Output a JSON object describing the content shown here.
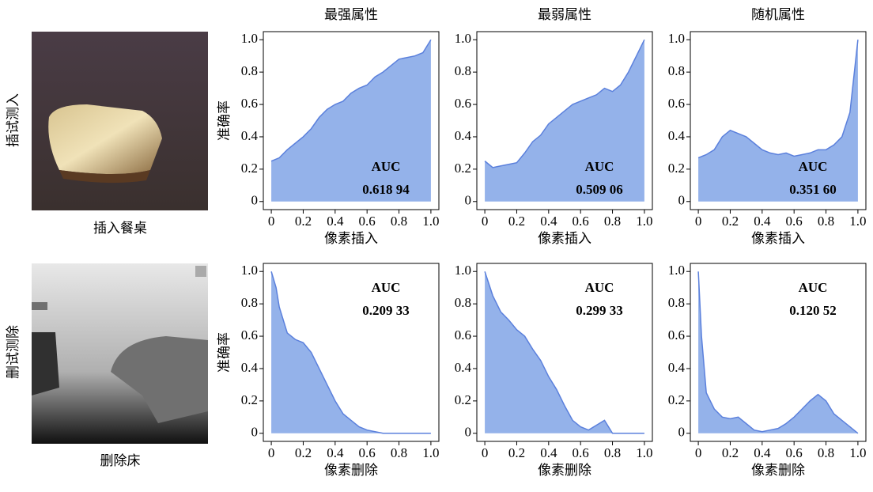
{
  "column_titles": [
    "最强属性",
    "最弱属性",
    "随机属性"
  ],
  "row_labels": [
    "插试测入",
    "删试测除"
  ],
  "image_captions": [
    "插入餐桌",
    "删除床"
  ],
  "chart_data": [
    {
      "type": "area",
      "xlabel": "像素插入",
      "ylabel": "准确率",
      "color": "#94b2ea",
      "line_color": "#5b80dc",
      "x": [
        0,
        0.05,
        0.1,
        0.15,
        0.2,
        0.25,
        0.3,
        0.35,
        0.4,
        0.45,
        0.5,
        0.55,
        0.6,
        0.65,
        0.7,
        0.75,
        0.8,
        0.85,
        0.9,
        0.95,
        1.0
      ],
      "values": [
        0.25,
        0.27,
        0.32,
        0.36,
        0.4,
        0.45,
        0.52,
        0.57,
        0.6,
        0.62,
        0.67,
        0.7,
        0.72,
        0.77,
        0.8,
        0.84,
        0.88,
        0.89,
        0.9,
        0.92,
        1.0
      ],
      "annotation": {
        "title": "AUC",
        "text": "0.618 94",
        "color": "#b22222"
      },
      "xlim": [
        -0.05,
        1.05
      ],
      "ylim": [
        -0.05,
        1.05
      ],
      "xticks": [
        0,
        0.2,
        0.4,
        0.6,
        0.8,
        {
          "value": 1,
          "label": "1.0"
        }
      ],
      "yticks": [
        0,
        0.2,
        0.4,
        0.6,
        0.8,
        {
          "value": 1,
          "label": "1.0"
        }
      ]
    },
    {
      "type": "area",
      "xlabel": "像素插入",
      "color": "#94b2ea",
      "line_color": "#5b80dc",
      "x": [
        0,
        0.05,
        0.1,
        0.15,
        0.2,
        0.25,
        0.3,
        0.35,
        0.4,
        0.45,
        0.5,
        0.55,
        0.6,
        0.65,
        0.7,
        0.75,
        0.8,
        0.85,
        0.9,
        0.95,
        1.0
      ],
      "values": [
        0.25,
        0.21,
        0.22,
        0.23,
        0.24,
        0.3,
        0.37,
        0.41,
        0.48,
        0.52,
        0.56,
        0.6,
        0.62,
        0.64,
        0.66,
        0.7,
        0.68,
        0.72,
        0.8,
        0.9,
        1.0
      ],
      "annotation": {
        "title": "AUC",
        "text": "0.509 06",
        "color": "#000000"
      },
      "xlim": [
        -0.05,
        1.05
      ],
      "ylim": [
        -0.05,
        1.05
      ],
      "xticks": [
        0,
        0.2,
        0.4,
        0.6,
        0.8,
        {
          "value": 1,
          "label": "1.0"
        }
      ],
      "yticks": [
        0,
        0.2,
        0.4,
        0.6,
        0.8,
        {
          "value": 1,
          "label": "1.0"
        }
      ]
    },
    {
      "type": "area",
      "xlabel": "像素插入",
      "color": "#94b2ea",
      "line_color": "#5b80dc",
      "x": [
        0,
        0.05,
        0.1,
        0.15,
        0.2,
        0.25,
        0.3,
        0.35,
        0.4,
        0.45,
        0.5,
        0.55,
        0.6,
        0.65,
        0.7,
        0.75,
        0.8,
        0.85,
        0.9,
        0.95,
        1.0
      ],
      "values": [
        0.27,
        0.29,
        0.32,
        0.4,
        0.44,
        0.42,
        0.4,
        0.36,
        0.32,
        0.3,
        0.29,
        0.3,
        0.28,
        0.29,
        0.3,
        0.32,
        0.32,
        0.35,
        0.4,
        0.55,
        1.0
      ],
      "annotation": {
        "title": "AUC",
        "text": "0.351 60",
        "color": "#000000"
      },
      "xlim": [
        -0.05,
        1.05
      ],
      "ylim": [
        -0.05,
        1.05
      ],
      "xticks": [
        0,
        0.2,
        0.4,
        0.6,
        0.8,
        {
          "value": 1,
          "label": "1.0"
        }
      ],
      "yticks": [
        0,
        0.2,
        0.4,
        0.6,
        0.8,
        {
          "value": 1,
          "label": "1.0"
        }
      ]
    },
    {
      "type": "area",
      "xlabel": "像素删除",
      "ylabel": "准确率",
      "color": "#94b2ea",
      "line_color": "#5b80dc",
      "x": [
        0,
        0.03,
        0.05,
        0.1,
        0.15,
        0.2,
        0.25,
        0.3,
        0.35,
        0.4,
        0.45,
        0.5,
        0.55,
        0.6,
        0.65,
        0.7,
        0.75,
        0.8,
        0.85,
        0.9,
        0.95,
        1.0
      ],
      "values": [
        1.0,
        0.9,
        0.78,
        0.62,
        0.58,
        0.56,
        0.5,
        0.4,
        0.3,
        0.2,
        0.12,
        0.08,
        0.04,
        0.02,
        0.01,
        0,
        0,
        0,
        0,
        0,
        0,
        0
      ],
      "annotation": {
        "title": "AUC",
        "text": "0.209 33",
        "color": "#b22222"
      },
      "xlim": [
        -0.05,
        1.05
      ],
      "ylim": [
        -0.05,
        1.05
      ],
      "xticks": [
        0,
        0.2,
        0.4,
        0.6,
        0.8,
        {
          "value": 1,
          "label": "1.0"
        }
      ],
      "yticks": [
        0,
        0.2,
        0.4,
        0.6,
        0.8,
        {
          "value": 1,
          "label": "1.0"
        }
      ]
    },
    {
      "type": "area",
      "xlabel": "像素删除",
      "color": "#94b2ea",
      "line_color": "#5b80dc",
      "x": [
        0,
        0.05,
        0.1,
        0.15,
        0.2,
        0.25,
        0.3,
        0.35,
        0.4,
        0.45,
        0.5,
        0.55,
        0.6,
        0.65,
        0.7,
        0.75,
        0.8,
        0.85,
        0.9,
        0.95,
        1.0
      ],
      "values": [
        1.0,
        0.85,
        0.75,
        0.7,
        0.64,
        0.6,
        0.52,
        0.45,
        0.35,
        0.27,
        0.17,
        0.08,
        0.04,
        0.02,
        0.05,
        0.08,
        0,
        0,
        0,
        0,
        0
      ],
      "annotation": {
        "title": "AUC",
        "text": "0.299 33",
        "color": "#000000"
      },
      "xlim": [
        -0.05,
        1.05
      ],
      "ylim": [
        -0.05,
        1.05
      ],
      "xticks": [
        0,
        0.2,
        0.4,
        0.6,
        0.8,
        {
          "value": 1,
          "label": "1.0"
        }
      ],
      "yticks": [
        0,
        0.2,
        0.4,
        0.6,
        0.8,
        {
          "value": 1,
          "label": "1.0"
        }
      ]
    },
    {
      "type": "area",
      "xlabel": "像素删除",
      "color": "#94b2ea",
      "line_color": "#5b80dc",
      "x": [
        0,
        0.02,
        0.05,
        0.1,
        0.15,
        0.2,
        0.25,
        0.3,
        0.35,
        0.4,
        0.45,
        0.5,
        0.55,
        0.6,
        0.65,
        0.7,
        0.75,
        0.8,
        0.85,
        0.9,
        0.95,
        1.0
      ],
      "values": [
        1.0,
        0.6,
        0.25,
        0.15,
        0.1,
        0.09,
        0.1,
        0.06,
        0.02,
        0.01,
        0.02,
        0.03,
        0.06,
        0.1,
        0.15,
        0.2,
        0.24,
        0.2,
        0.12,
        0.08,
        0.04,
        0
      ],
      "annotation": {
        "title": "AUC",
        "text": "0.120 52",
        "color": "#000000"
      },
      "xlim": [
        -0.05,
        1.05
      ],
      "ylim": [
        -0.05,
        1.05
      ],
      "xticks": [
        0,
        0.2,
        0.4,
        0.6,
        0.8,
        {
          "value": 1,
          "label": "1.0"
        }
      ],
      "yticks": [
        0,
        0.2,
        0.4,
        0.6,
        0.8,
        {
          "value": 1,
          "label": "1.0"
        }
      ]
    }
  ]
}
